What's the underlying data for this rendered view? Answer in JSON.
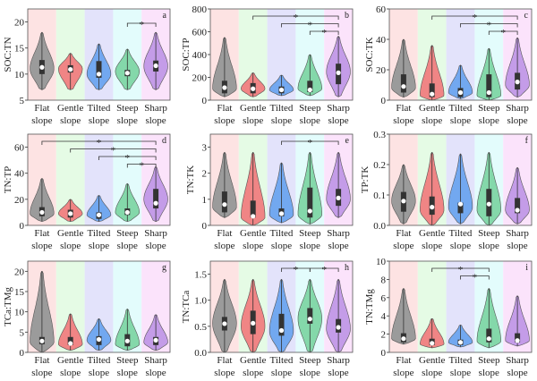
{
  "categories": [
    [
      "Flat",
      "slope"
    ],
    [
      "Gentle",
      "slope"
    ],
    [
      "Tilted",
      "slope"
    ],
    [
      "Steep",
      "slope"
    ],
    [
      "Sharp",
      "slope"
    ]
  ],
  "colors": {
    "backgrounds": [
      "#fde3e3",
      "#e5fbe5",
      "#e3e3fb",
      "#e3fcfc",
      "#fbe3fb"
    ],
    "violins": [
      "#9b9b9b",
      "#f08585",
      "#72a8f0",
      "#84d8aa",
      "#c49ce8"
    ],
    "box": "#333333",
    "median": "#ffffff"
  },
  "chart_data": [
    {
      "type": "violin",
      "letter": "a",
      "ylabel": "SOC:TN",
      "ylim": [
        5,
        22.5
      ],
      "yticks": [
        "5",
        "10",
        "15",
        "20"
      ],
      "yticks_values": [
        5,
        10,
        15,
        20
      ],
      "series": [
        {
          "min": 7,
          "max": 18,
          "q1": 10,
          "q3": 12.7,
          "median": 11.3,
          "mode": 11
        },
        {
          "min": 7,
          "max": 14,
          "q1": 10.3,
          "q3": 11.7,
          "median": 10.9,
          "mode": 11
        },
        {
          "min": 7,
          "max": 15.8,
          "q1": 9.3,
          "q3": 12.5,
          "median": 10,
          "mode": 10
        },
        {
          "min": 7,
          "max": 14.8,
          "q1": 9.6,
          "q3": 10.8,
          "median": 10.2,
          "mode": 10.5
        },
        {
          "min": 7,
          "max": 18,
          "q1": 10.5,
          "q3": 12.6,
          "median": 11.6,
          "mode": 11.5
        }
      ],
      "significance": [
        {
          "from": "Steep slope",
          "to": "Sharp slope",
          "label": "*"
        }
      ]
    },
    {
      "type": "violin",
      "letter": "b",
      "ylabel": "SOC:TP",
      "ylim": [
        0,
        800
      ],
      "yticks": [
        "0",
        "200",
        "400",
        "600",
        "800"
      ],
      "yticks_values": [
        0,
        200,
        400,
        600,
        800
      ],
      "series": [
        {
          "min": 30,
          "max": 550,
          "q1": 60,
          "q3": 170,
          "median": 110,
          "mode": 100
        },
        {
          "min": 30,
          "max": 240,
          "q1": 60,
          "q3": 150,
          "median": 100,
          "mode": 100
        },
        {
          "min": 40,
          "max": 220,
          "q1": 60,
          "q3": 120,
          "median": 90,
          "mode": 90
        },
        {
          "min": 40,
          "max": 400,
          "q1": 70,
          "q3": 170,
          "median": 90,
          "mode": 100
        },
        {
          "min": 30,
          "max": 560,
          "q1": 140,
          "q3": 320,
          "median": 240,
          "mode": 250
        }
      ],
      "significance": [
        {
          "from": "Gentle slope",
          "to": "Sharp slope",
          "label": "*"
        },
        {
          "from": "Tilted slope",
          "to": "Sharp slope",
          "label": "*"
        },
        {
          "from": "Steep slope",
          "to": "Sharp slope",
          "label": "*"
        }
      ]
    },
    {
      "type": "violin",
      "letter": "c",
      "ylabel": "SOC:TK",
      "ylim": [
        0,
        60
      ],
      "yticks": [
        "0",
        "20",
        "40",
        "60"
      ],
      "yticks_values": [
        0,
        20,
        40,
        60
      ],
      "series": [
        {
          "min": 2,
          "max": 40,
          "q1": 5,
          "q3": 17,
          "median": 9,
          "mode": 8
        },
        {
          "min": 0,
          "max": 36,
          "q1": 2,
          "q3": 11,
          "median": 4,
          "mode": 3
        },
        {
          "min": 1,
          "max": 23,
          "q1": 2,
          "q3": 8,
          "median": 5,
          "mode": 5
        },
        {
          "min": 0,
          "max": 34,
          "q1": 2,
          "q3": 17,
          "median": 5,
          "mode": 3
        },
        {
          "min": 2,
          "max": 41,
          "q1": 7,
          "q3": 18,
          "median": 12,
          "mode": 10
        }
      ],
      "significance": [
        {
          "from": "Gentle slope",
          "to": "Sharp slope",
          "label": "*"
        },
        {
          "from": "Tilted slope",
          "to": "Sharp slope",
          "label": "*"
        },
        {
          "from": "Steep slope",
          "to": "Sharp slope",
          "label": "*"
        }
      ]
    },
    {
      "type": "violin",
      "letter": "d",
      "ylabel": "TN:TP",
      "ylim": [
        0,
        70
      ],
      "yticks": [
        "0",
        "20",
        "40",
        "60"
      ],
      "yticks_values": [
        0,
        20,
        40,
        60
      ],
      "series": [
        {
          "min": 3,
          "max": 36,
          "q1": 7,
          "q3": 14,
          "median": 10,
          "mode": 9
        },
        {
          "min": 3,
          "max": 20,
          "q1": 6,
          "q3": 12,
          "median": 9,
          "mode": 9
        },
        {
          "min": 3,
          "max": 23,
          "q1": 5,
          "q3": 10,
          "median": 8,
          "mode": 8
        },
        {
          "min": 3,
          "max": 32,
          "q1": 8,
          "q3": 13,
          "median": 10,
          "mode": 10
        },
        {
          "min": 3,
          "max": 45,
          "q1": 13,
          "q3": 28,
          "median": 17,
          "mode": 20
        }
      ],
      "significance": [
        {
          "from": "Flat slope",
          "to": "Sharp slope",
          "label": "*"
        },
        {
          "from": "Gentle slope",
          "to": "Sharp slope",
          "label": "*"
        },
        {
          "from": "Tilted slope",
          "to": "Sharp slope",
          "label": "*"
        },
        {
          "from": "Steep slope",
          "to": "Sharp slope",
          "label": "*"
        }
      ]
    },
    {
      "type": "violin",
      "letter": "e",
      "ylabel": "TN:TK",
      "ylim": [
        0,
        3.5
      ],
      "yticks": [
        "0",
        "1",
        "2",
        "3"
      ],
      "yticks_values": [
        0,
        1,
        2,
        3
      ],
      "series": [
        {
          "min": 0.3,
          "max": 2.8,
          "q1": 0.5,
          "q3": 1.3,
          "median": 0.8,
          "mode": 0.7
        },
        {
          "min": 0,
          "max": 2.8,
          "q1": 0.3,
          "q3": 0.95,
          "median": 0.35,
          "mode": 0.3
        },
        {
          "min": 0.1,
          "max": 2.4,
          "q1": 0.35,
          "q3": 0.65,
          "median": 0.45,
          "mode": 0.4
        },
        {
          "min": 0.05,
          "max": 2.8,
          "q1": 0.3,
          "q3": 1.45,
          "median": 0.55,
          "mode": 0.4
        },
        {
          "min": 0.3,
          "max": 2.8,
          "q1": 0.75,
          "q3": 1.4,
          "median": 1.05,
          "mode": 1.0
        }
      ],
      "significance": [
        {
          "from": "Tilted slope",
          "to": "Sharp slope",
          "label": "*"
        }
      ]
    },
    {
      "type": "violin",
      "letter": "f",
      "ylabel": "TP:TK",
      "ylim": [
        0,
        0.3
      ],
      "yticks": [
        "0.0",
        "0.1",
        "0.2",
        "0.3"
      ],
      "yticks_values": [
        0,
        0.1,
        0.2,
        0.3
      ],
      "series": [
        {
          "min": 0.005,
          "max": 0.2,
          "q1": 0.045,
          "q3": 0.11,
          "median": 0.08,
          "mode": 0.08
        },
        {
          "min": 0,
          "max": 0.24,
          "q1": 0.035,
          "q3": 0.095,
          "median": 0.06,
          "mode": 0.05
        },
        {
          "min": 0.005,
          "max": 0.235,
          "q1": 0.04,
          "q3": 0.075,
          "median": 0.07,
          "mode": 0.06
        },
        {
          "min": 0,
          "max": 0.24,
          "q1": 0.03,
          "q3": 0.12,
          "median": 0.07,
          "mode": 0.05
        },
        {
          "min": 0.005,
          "max": 0.19,
          "q1": 0.04,
          "q3": 0.09,
          "median": 0.05,
          "mode": 0.05
        }
      ],
      "significance": []
    },
    {
      "type": "violin",
      "letter": "g",
      "ylabel": "TCa:TMg",
      "ylim": [
        0,
        22.5
      ],
      "yticks": [
        "0",
        "5",
        "10",
        "15",
        "20"
      ],
      "yticks_values": [
        0,
        5,
        10,
        15,
        20
      ],
      "series": [
        {
          "min": 0,
          "max": 20,
          "q1": 2,
          "q3": 3.8,
          "median": 2.8,
          "mode": 2.5
        },
        {
          "min": 0.5,
          "max": 9.5,
          "q1": 1.8,
          "q3": 3.8,
          "median": 2.2,
          "mode": 2
        },
        {
          "min": 0.5,
          "max": 8.3,
          "q1": 1.8,
          "q3": 4,
          "median": 3.2,
          "mode": 3
        },
        {
          "min": 0.5,
          "max": 10.7,
          "q1": 1.5,
          "q3": 4.5,
          "median": 2.8,
          "mode": 2
        },
        {
          "min": 0.5,
          "max": 9.3,
          "q1": 1.8,
          "q3": 3.8,
          "median": 3,
          "mode": 2.5
        }
      ],
      "significance": []
    },
    {
      "type": "violin",
      "letter": "h",
      "ylabel": "TN:TCa",
      "ylim": [
        0,
        1.75
      ],
      "yticks": [
        "0.0",
        "0.5",
        "1.0",
        "1.5"
      ],
      "yticks_values": [
        0,
        0.5,
        1.0,
        1.5
      ],
      "series": [
        {
          "min": 0,
          "max": 1.4,
          "q1": 0.42,
          "q3": 0.68,
          "median": 0.55,
          "mode": 0.55
        },
        {
          "min": 0,
          "max": 1.4,
          "q1": 0.35,
          "q3": 0.8,
          "median": 0.56,
          "mode": 0.5
        },
        {
          "min": 0,
          "max": 1.4,
          "q1": 0.32,
          "q3": 0.74,
          "median": 0.42,
          "mode": 0.4
        },
        {
          "min": 0,
          "max": 1.4,
          "q1": 0.55,
          "q3": 0.85,
          "median": 0.64,
          "mode": 0.65
        },
        {
          "min": 0,
          "max": 1.4,
          "q1": 0.38,
          "q3": 0.64,
          "median": 0.48,
          "mode": 0.45
        }
      ],
      "significance": [
        {
          "from": "Tilted slope",
          "to": "Steep slope",
          "label": "*"
        },
        {
          "from": "Steep slope",
          "to": "Sharp slope",
          "label": "*"
        }
      ]
    },
    {
      "type": "violin",
      "letter": "i",
      "ylabel": "TN:TMg",
      "ylim": [
        0,
        10
      ],
      "yticks": [
        "0",
        "2",
        "4",
        "6",
        "8",
        "10"
      ],
      "yticks_values": [
        0,
        2,
        4,
        6,
        8,
        10
      ],
      "series": [
        {
          "min": 0.9,
          "max": 7,
          "q1": 1.1,
          "q3": 2.1,
          "median": 1.5,
          "mode": 1.5
        },
        {
          "min": 0.5,
          "max": 3.7,
          "q1": 0.8,
          "q3": 1.5,
          "median": 1,
          "mode": 0.9
        },
        {
          "min": 0.6,
          "max": 3,
          "q1": 0.8,
          "q3": 1.4,
          "median": 1.1,
          "mode": 1.1
        },
        {
          "min": 0.5,
          "max": 7,
          "q1": 1.1,
          "q3": 2.6,
          "median": 1.5,
          "mode": 1.2
        },
        {
          "min": 0.7,
          "max": 6.2,
          "q1": 1.1,
          "q3": 2.1,
          "median": 1.3,
          "mode": 1.3
        }
      ],
      "significance": [
        {
          "from": "Gentle slope",
          "to": "Steep slope",
          "label": "*"
        },
        {
          "from": "Tilted slope",
          "to": "Steep slope",
          "label": "*"
        }
      ]
    }
  ]
}
